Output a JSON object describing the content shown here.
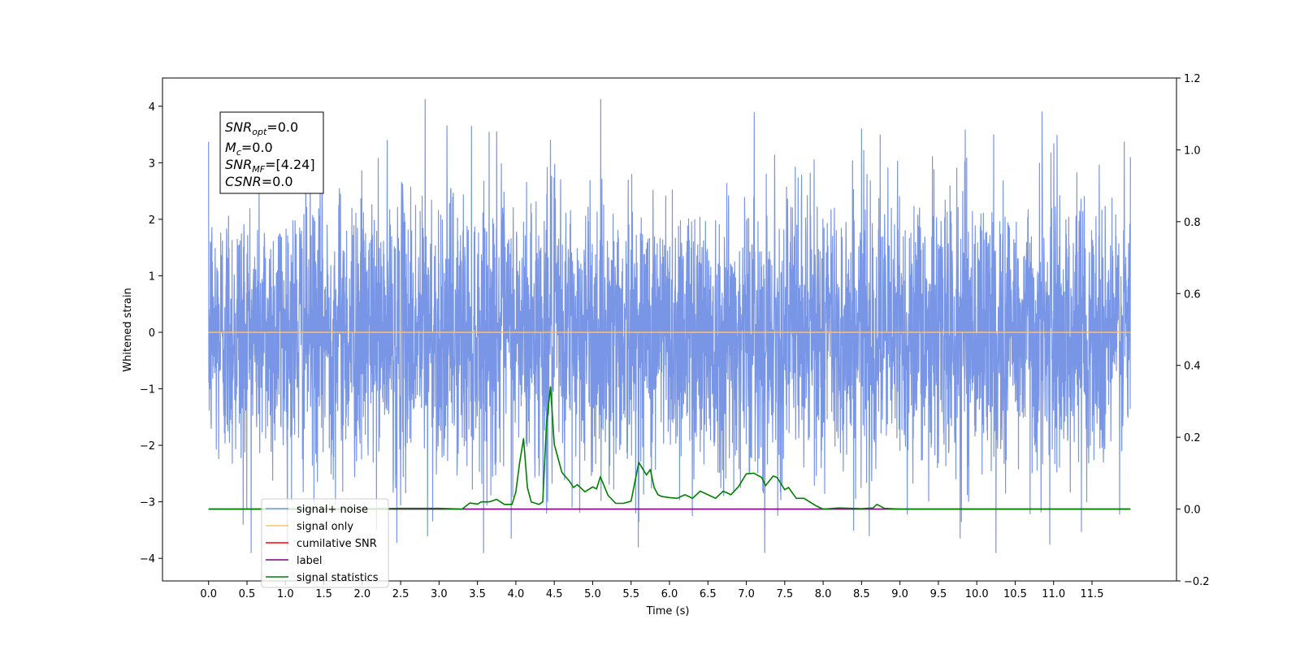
{
  "chart_data": {
    "type": "line",
    "xlabel": "Time (s)",
    "ylabel_left": "Whitened strain",
    "xlim": [
      -0.6,
      12.6
    ],
    "ylim_left": [
      -4.4,
      4.5
    ],
    "ylim_right": [
      -0.2,
      1.2
    ],
    "x_ticks": [
      "0.0",
      "0.5",
      "1.0",
      "1.5",
      "2.0",
      "2.5",
      "3.0",
      "3.5",
      "4.0",
      "4.5",
      "5.0",
      "5.5",
      "6.0",
      "6.5",
      "7.0",
      "7.5",
      "8.0",
      "8.5",
      "9.0",
      "9.5",
      "10.0",
      "10.5",
      "11.0",
      "11.5"
    ],
    "y_ticks_left": [
      "4",
      "3",
      "2",
      "1",
      "0",
      "−1",
      "−2",
      "−3",
      "−4"
    ],
    "y_ticks_right": [
      "1.2",
      "1.0",
      "0.8",
      "0.6",
      "0.4",
      "0.2",
      "0.0",
      "−0.2"
    ],
    "grid": false,
    "legend_position": "lower-left",
    "stats_box": {
      "snr_opt": {
        "name": "SNR",
        "sub": "opt",
        "value": "=0.0"
      },
      "mc": {
        "name": "M",
        "sub": "c",
        "value": "=0.0"
      },
      "snr_mf": {
        "name": "SNR",
        "sub": "MF",
        "value": "=[4.24]"
      },
      "csnr": {
        "name": "CSNR",
        "value": "=0.0"
      }
    },
    "series": [
      {
        "name": "signal+ noise",
        "axis": "left",
        "color": "#7895e6",
        "x_range": [
          0.0,
          12.0
        ],
        "envelope": {
          "typical_amplitude": 1.35,
          "min": -3.9,
          "max": 4.12
        },
        "notable_spikes": [
          {
            "x": 2.82,
            "y": 4.12
          },
          {
            "x": 10.85,
            "y": 3.9
          },
          {
            "x": 8.5,
            "y": 3.6
          },
          {
            "x": 9.85,
            "y": 3.58
          },
          {
            "x": 3.75,
            "y": 3.55
          },
          {
            "x": 4.45,
            "y": 3.4
          },
          {
            "x": 10.25,
            "y": -3.9
          },
          {
            "x": 2.45,
            "y": -3.72
          },
          {
            "x": 10.95,
            "y": -3.75
          },
          {
            "x": 0.45,
            "y": -3.4
          },
          {
            "x": 2.85,
            "y": -3.6
          },
          {
            "x": 9.8,
            "y": -3.35
          },
          {
            "x": 4.4,
            "y": -3.2
          },
          {
            "x": 12.0,
            "y": 3.1
          }
        ]
      },
      {
        "name": "signal only",
        "axis": "left",
        "color": "#ffbf66",
        "x": [
          0.0,
          12.0
        ],
        "y": [
          0.0,
          0.0
        ]
      },
      {
        "name": "cumilative SNR",
        "axis": "right",
        "color": "#ff0000",
        "x": [],
        "y": []
      },
      {
        "name": "label",
        "axis": "right",
        "color": "#800080",
        "x": [
          0.0,
          12.0
        ],
        "y": [
          0.0,
          0.0
        ]
      },
      {
        "name": "signal statistics",
        "axis": "right",
        "color": "#008000",
        "x": [
          0.0,
          1.0,
          2.0,
          2.5,
          3.0,
          3.3,
          3.4,
          3.5,
          3.55,
          3.65,
          3.75,
          3.85,
          3.95,
          4.0,
          4.05,
          4.1,
          4.15,
          4.2,
          4.3,
          4.35,
          4.4,
          4.45,
          4.5,
          4.6,
          4.7,
          4.75,
          4.8,
          4.9,
          5.0,
          5.05,
          5.1,
          5.2,
          5.3,
          5.4,
          5.5,
          5.6,
          5.7,
          5.75,
          5.8,
          5.85,
          5.9,
          6.0,
          6.1,
          6.2,
          6.3,
          6.4,
          6.5,
          6.6,
          6.7,
          6.8,
          6.9,
          7.0,
          7.1,
          7.2,
          7.25,
          7.35,
          7.4,
          7.5,
          7.55,
          7.65,
          7.75,
          7.9,
          8.0,
          8.2,
          8.5,
          8.65,
          8.7,
          8.8,
          9.0,
          10.0,
          11.0,
          12.0
        ],
        "y": [
          0.0,
          0.0,
          0.0,
          0.002,
          0.002,
          0.0,
          0.017,
          0.014,
          0.02,
          0.02,
          0.027,
          0.013,
          0.013,
          0.048,
          0.13,
          0.196,
          0.06,
          0.02,
          0.013,
          0.02,
          0.24,
          0.34,
          0.18,
          0.102,
          0.077,
          0.06,
          0.068,
          0.048,
          0.062,
          0.056,
          0.09,
          0.038,
          0.016,
          0.016,
          0.022,
          0.13,
          0.095,
          0.11,
          0.06,
          0.04,
          0.035,
          0.032,
          0.03,
          0.04,
          0.03,
          0.05,
          0.04,
          0.03,
          0.05,
          0.04,
          0.063,
          0.098,
          0.1,
          0.088,
          0.065,
          0.092,
          0.088,
          0.054,
          0.06,
          0.03,
          0.03,
          0.01,
          0.0,
          0.003,
          0.001,
          0.003,
          0.013,
          0.002,
          0.0,
          0.0,
          0.0,
          0.0
        ]
      }
    ]
  }
}
